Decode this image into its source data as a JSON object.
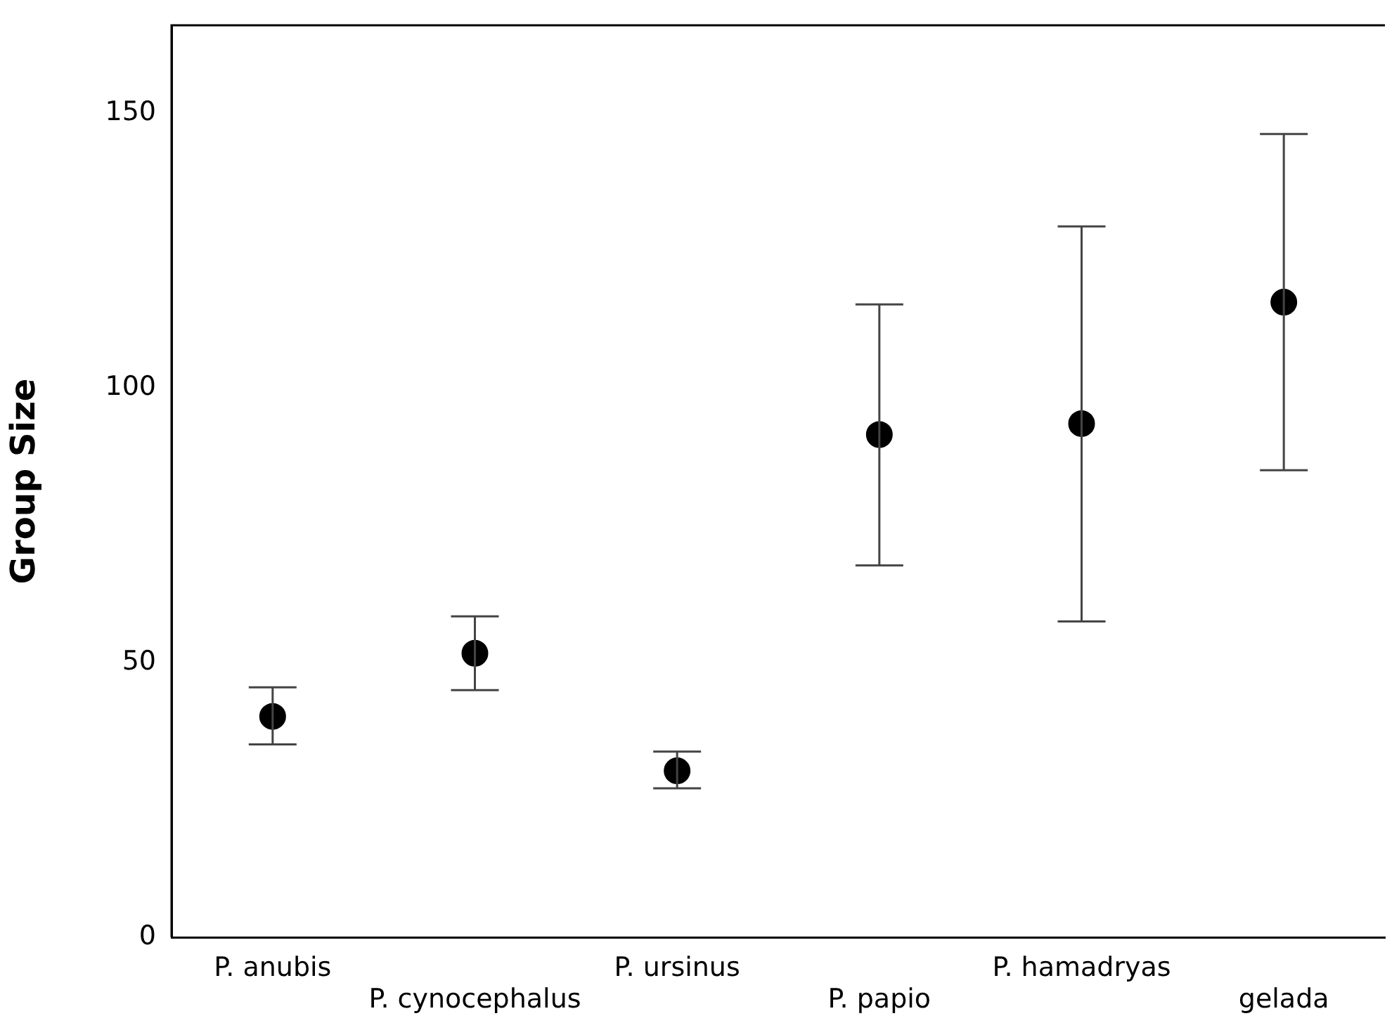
{
  "chart_data": {
    "type": "scatter",
    "ylabel": "Group Size",
    "categories": [
      "P. anubis",
      "P. cynocephalus",
      "P. ursinus",
      "P. papio",
      "P. hamadryas",
      "gelada"
    ],
    "values": [
      40.2,
      51.7,
      30.3,
      91.5,
      93.5,
      115.6
    ],
    "errors": [
      [
        35.1,
        45.5
      ],
      [
        45.0,
        58.4
      ],
      [
        27.1,
        33.8
      ],
      [
        67.7,
        115.2
      ],
      [
        57.5,
        129.4
      ],
      [
        85.0,
        146.2
      ]
    ],
    "color": "#000000",
    "marker": "circle",
    "ylim": [
      0,
      166
    ],
    "yticks": [
      0,
      50,
      100,
      150
    ],
    "grid": false,
    "legend": false
  }
}
